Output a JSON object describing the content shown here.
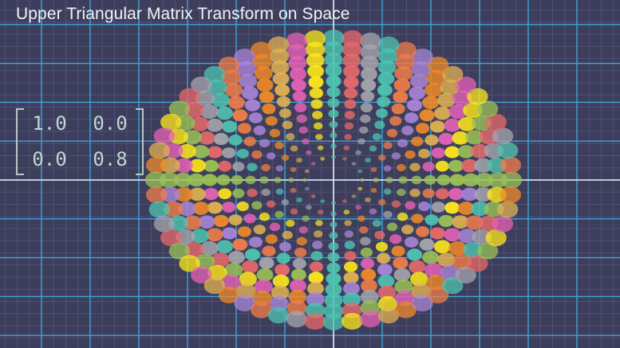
{
  "title": "Upper Triangular Matrix Transform on Space",
  "matrix": {
    "rows": [
      [
        "1.0",
        "0.0"
      ],
      [
        "0.0",
        "0.8"
      ]
    ]
  },
  "colors": {
    "background": "#3d3e5c",
    "grid_line": "#3fa3d9",
    "grid_fine": "#53547a",
    "axis": "#e8e8ee",
    "matrix_text": "#bfd8d2"
  },
  "dot_palette": [
    "#4ec4b0",
    "#9ac155",
    "#e2b251",
    "#f07d49",
    "#e86a6a",
    "#e562b6",
    "#a985d6",
    "#a5a5ad",
    "#ffe81a",
    "#f08a28"
  ]
}
